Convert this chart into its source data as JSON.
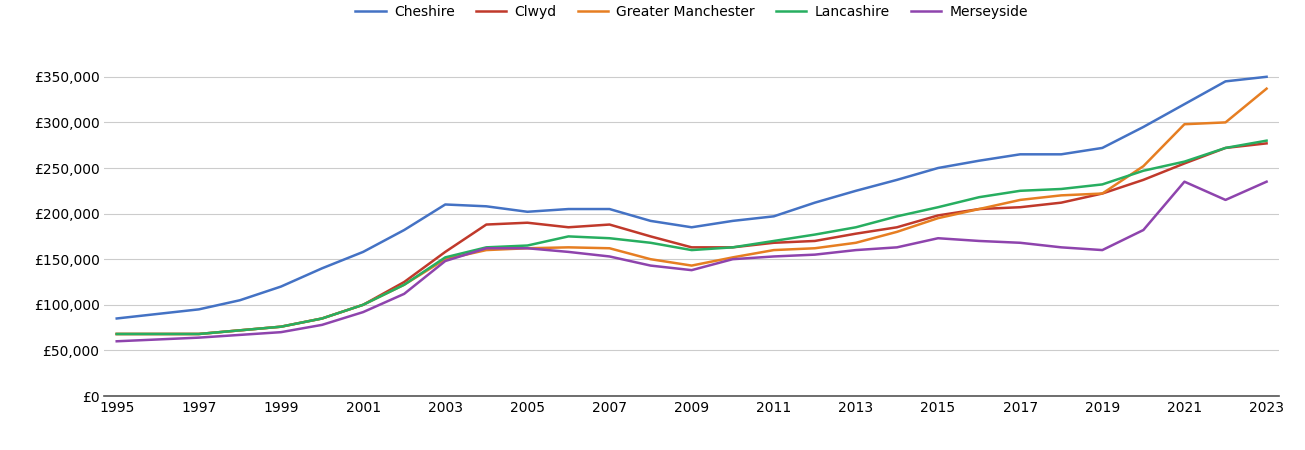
{
  "years": [
    1995,
    1996,
    1997,
    1998,
    1999,
    2000,
    2001,
    2002,
    2003,
    2004,
    2005,
    2006,
    2007,
    2008,
    2009,
    2010,
    2011,
    2012,
    2013,
    2014,
    2015,
    2016,
    2017,
    2018,
    2019,
    2020,
    2021,
    2022,
    2023
  ],
  "series": {
    "Cheshire": [
      85000,
      90000,
      95000,
      105000,
      120000,
      140000,
      158000,
      182000,
      210000,
      208000,
      202000,
      205000,
      205000,
      192000,
      185000,
      192000,
      197000,
      212000,
      225000,
      237000,
      250000,
      258000,
      265000,
      265000,
      272000,
      295000,
      320000,
      345000,
      350000
    ],
    "Clwyd": [
      68000,
      68000,
      68000,
      72000,
      76000,
      85000,
      100000,
      125000,
      158000,
      188000,
      190000,
      185000,
      188000,
      175000,
      163000,
      163000,
      168000,
      170000,
      178000,
      185000,
      198000,
      205000,
      207000,
      212000,
      222000,
      237000,
      255000,
      272000,
      277000
    ],
    "Greater Manchester": [
      68000,
      68000,
      68000,
      72000,
      76000,
      85000,
      100000,
      122000,
      150000,
      160000,
      162000,
      163000,
      162000,
      150000,
      143000,
      152000,
      160000,
      162000,
      168000,
      180000,
      195000,
      205000,
      215000,
      220000,
      222000,
      252000,
      298000,
      300000,
      337000
    ],
    "Lancashire": [
      68000,
      68000,
      68000,
      72000,
      76000,
      85000,
      100000,
      122000,
      152000,
      163000,
      165000,
      175000,
      173000,
      168000,
      160000,
      163000,
      170000,
      177000,
      185000,
      197000,
      207000,
      218000,
      225000,
      227000,
      232000,
      247000,
      257000,
      272000,
      280000
    ],
    "Merseyside": [
      60000,
      62000,
      64000,
      67000,
      70000,
      78000,
      92000,
      112000,
      148000,
      162000,
      162000,
      158000,
      153000,
      143000,
      138000,
      150000,
      153000,
      155000,
      160000,
      163000,
      173000,
      170000,
      168000,
      163000,
      160000,
      182000,
      235000,
      215000,
      235000
    ]
  },
  "colors": {
    "Cheshire": "#4472C4",
    "Clwyd": "#C0392B",
    "Greater Manchester": "#E67E22",
    "Lancashire": "#27AE60",
    "Merseyside": "#8E44AD"
  },
  "ylim": [
    0,
    375000
  ],
  "yticks": [
    0,
    50000,
    100000,
    150000,
    200000,
    250000,
    300000,
    350000
  ],
  "background_color": "#ffffff",
  "grid_color": "#cccccc",
  "linewidth": 1.8,
  "legend_fontsize": 10,
  "tick_fontsize": 10
}
